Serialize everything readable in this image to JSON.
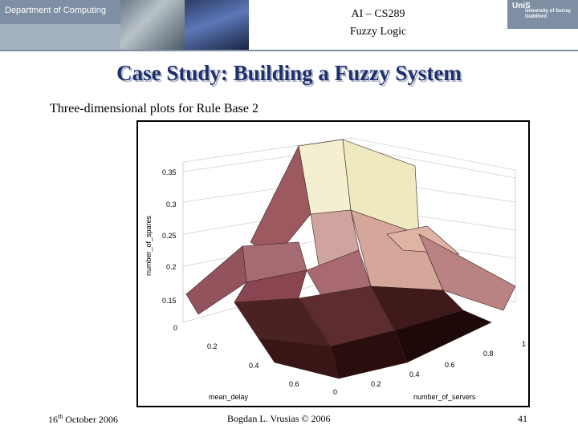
{
  "header": {
    "department": "Department of Computing",
    "course_code": "AI – CS289",
    "course_name": "Fuzzy Logic",
    "logo_text": "UniS",
    "university_name": "University of Surrey",
    "university_place": "Guildford"
  },
  "slide": {
    "title": "Case Study: Building a Fuzzy System",
    "subtitle": "Three-dimensional plots for Rule Base 2"
  },
  "plot": {
    "z_label": "number_of_spares",
    "z_ticks": [
      "0.35",
      "0.3",
      "0.25",
      "0.2",
      "0.15",
      "0"
    ],
    "x_label": "mean_delay",
    "x_ticks": [
      "0.2",
      "0.4",
      "0.6",
      "0"
    ],
    "y_label": "number_of_servers",
    "y_ticks": [
      "0.2",
      "0.4",
      "0.6",
      "0.8",
      "1"
    ]
  },
  "footer": {
    "date_day": "16",
    "date_suffix": "th",
    "date_rest": " October 2006",
    "author": "Bogdan L. Vrusias © 2006",
    "page_number": "41"
  }
}
